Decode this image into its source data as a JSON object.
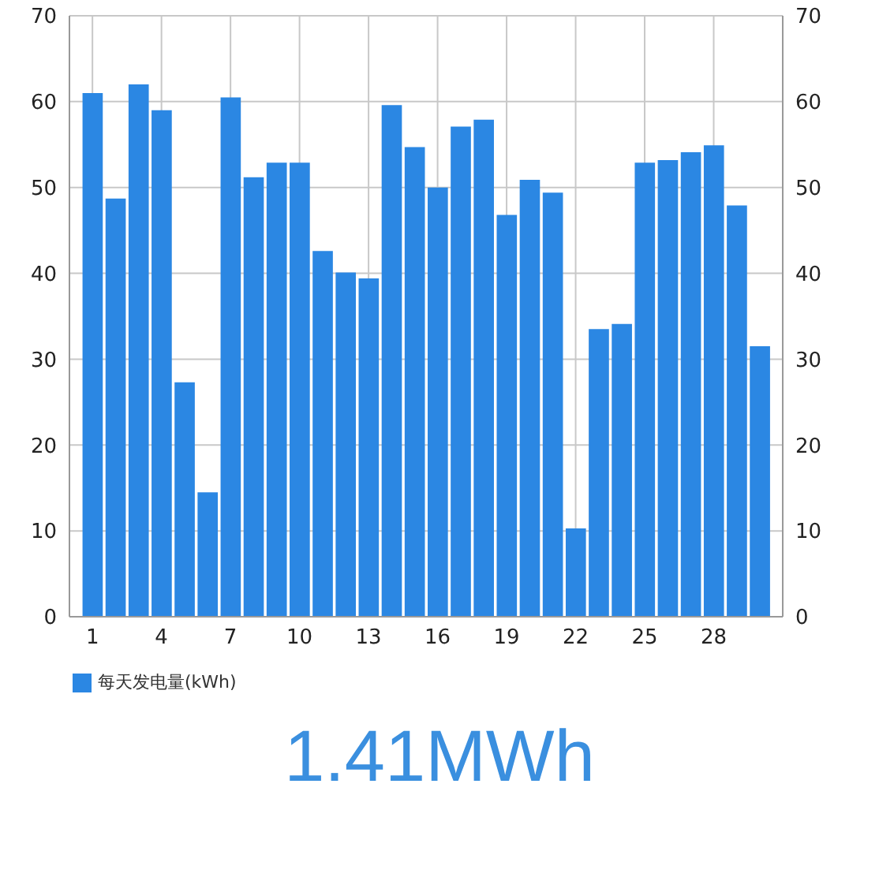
{
  "chart_data": {
    "type": "bar",
    "x": [
      1,
      2,
      3,
      4,
      5,
      6,
      7,
      8,
      9,
      10,
      11,
      12,
      13,
      14,
      15,
      16,
      17,
      18,
      19,
      20,
      21,
      22,
      23,
      24,
      25,
      26,
      27,
      28,
      29,
      30
    ],
    "xlim": [
      0,
      31
    ],
    "xticks": [
      1,
      4,
      7,
      10,
      13,
      16,
      19,
      22,
      25,
      28
    ],
    "series": [
      {
        "name": "每天发电量(kWh)",
        "color": "#2b87e3",
        "values": [
          61,
          48.7,
          62,
          59,
          27.3,
          14.5,
          60.5,
          51.2,
          52.9,
          52.9,
          42.6,
          40.1,
          39.4,
          59.6,
          54.7,
          50,
          57.1,
          57.9,
          46.8,
          50.9,
          49.4,
          10.3,
          33.5,
          34.1,
          52.9,
          53.2,
          54.1,
          54.9,
          47.9,
          31.5
        ]
      }
    ],
    "ylim": [
      0,
      70
    ],
    "yticks": [
      0,
      10,
      20,
      30,
      40,
      50,
      60,
      70
    ],
    "y2lim": [
      0,
      70
    ],
    "y2ticks": [
      0,
      10,
      20,
      30,
      40,
      50,
      60,
      70
    ],
    "grid": true,
    "legend": "bottom left",
    "annotations": [
      "1.41MWh"
    ]
  }
}
